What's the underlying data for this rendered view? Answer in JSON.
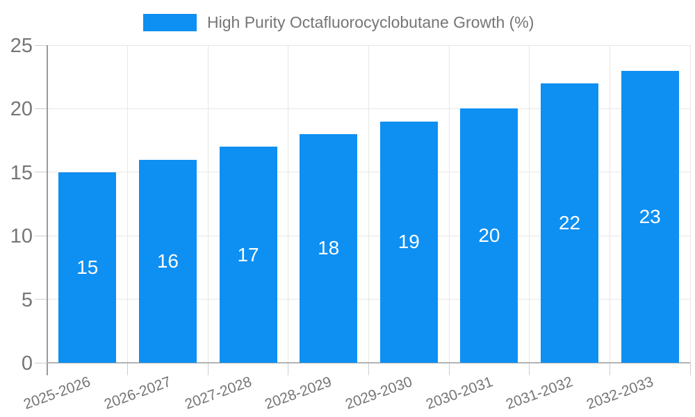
{
  "legend": {
    "label": "High Purity Octafluorocyclobutane Growth (%)",
    "swatch_color": "#0e8ff2"
  },
  "chart_data": {
    "type": "bar",
    "title": "High Purity Octafluorocyclobutane Growth (%)",
    "categories": [
      "2025-2026",
      "2026-2027",
      "2027-2028",
      "2028-2029",
      "2029-2030",
      "2030-2031",
      "2031-2032",
      "2032-2033"
    ],
    "values": [
      15,
      16,
      17,
      18,
      19,
      20,
      22,
      23
    ],
    "xlabel": "",
    "ylabel": "",
    "ylim": [
      0,
      25
    ],
    "yticks": [
      0,
      5,
      10,
      15,
      20,
      25
    ],
    "grid": true,
    "legend_position": "top",
    "xlabel_rotation_deg": -20,
    "bar_color": "#0e8ff2",
    "value_label_color": "#ffffff",
    "axis_text_color": "#757575",
    "gridline_color": "#e6e6e6"
  }
}
